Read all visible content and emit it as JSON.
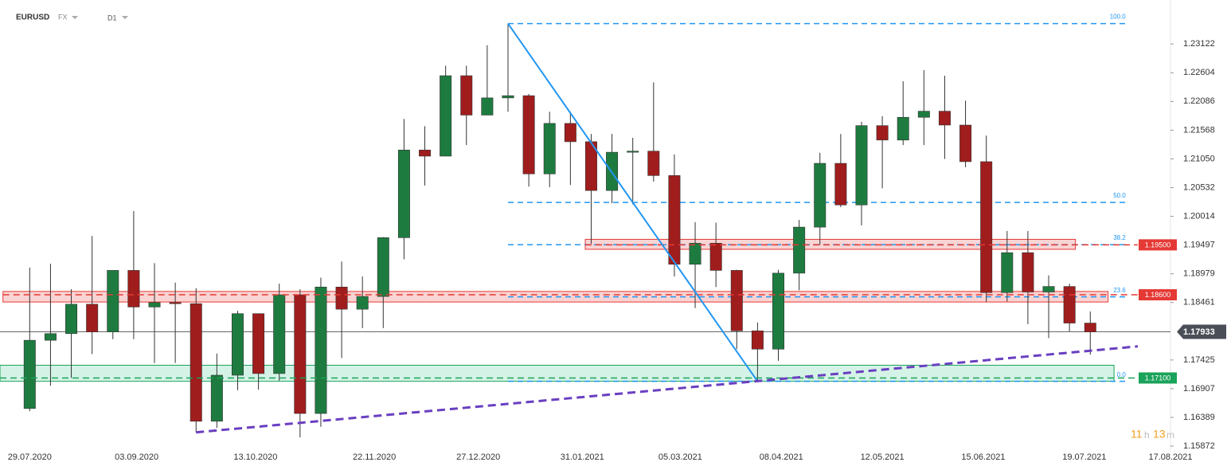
{
  "chart_data": {
    "type": "candlestick",
    "symbol": "EURUSD",
    "market": "FX",
    "timeframe": "D1",
    "countdown": [
      "11",
      "h",
      "13",
      "m"
    ],
    "up_color": "#1e7b40",
    "down_color": "#a01d1d",
    "x": [
      "27.07.2020",
      "03.08.2020",
      "10.08.2020",
      "17.08.2020",
      "24.08.2020",
      "31.08.2020",
      "07.09.2020",
      "14.09.2020",
      "21.09.2020",
      "28.09.2020",
      "05.10.2020",
      "12.10.2020",
      "19.10.2020",
      "26.10.2020",
      "02.11.2020",
      "09.11.2020",
      "16.11.2020",
      "23.11.2020",
      "30.11.2020",
      "07.12.2020",
      "14.12.2020",
      "21.12.2020",
      "28.12.2020",
      "04.01.2021",
      "11.01.2021",
      "18.01.2021",
      "25.01.2021",
      "01.02.2021",
      "08.02.2021",
      "15.02.2021",
      "22.02.2021",
      "01.03.2021",
      "08.03.2021",
      "15.03.2021",
      "22.03.2021",
      "29.03.2021",
      "05.04.2021",
      "12.04.2021",
      "19.04.2021",
      "26.04.2021",
      "03.05.2021",
      "10.05.2021",
      "17.05.2021",
      "24.05.2021",
      "31.05.2021",
      "07.06.2021",
      "14.06.2021",
      "21.06.2021",
      "28.06.2021",
      "05.07.2021",
      "12.07.2021",
      "19.07.2021"
    ],
    "open": [
      1.1655,
      1.1778,
      1.179,
      1.1843,
      1.1793,
      1.1904,
      1.1838,
      1.1846,
      1.1844,
      1.1632,
      1.1715,
      1.1826,
      1.1718,
      1.186,
      1.1646,
      1.1874,
      1.1834,
      1.1857,
      1.1963,
      1.2121,
      1.211,
      1.2255,
      1.2184,
      1.2215,
      1.2219,
      1.2078,
      1.2169,
      1.2136,
      1.2048,
      1.2117,
      1.2119,
      1.2075,
      1.1915,
      1.1953,
      1.1904,
      1.1795,
      1.1762,
      1.1899,
      1.1982,
      1.2097,
      1.2022,
      1.2165,
      1.2139,
      1.218,
      1.2191,
      1.2166,
      1.21,
      1.1864,
      1.1936,
      1.1865,
      1.1875,
      1.1809
    ],
    "high": [
      1.1909,
      1.1916,
      1.187,
      1.1966,
      1.1903,
      1.2011,
      1.1917,
      1.1882,
      1.1872,
      1.1754,
      1.1831,
      1.1826,
      1.188,
      1.187,
      1.1891,
      1.192,
      1.1893,
      1.1964,
      1.2177,
      1.2164,
      1.2273,
      1.2273,
      1.231,
      1.2349,
      1.2222,
      1.219,
      1.219,
      1.215,
      1.215,
      1.2143,
      1.2243,
      1.2113,
      1.1991,
      1.199,
      1.1905,
      1.181,
      1.1905,
      1.1995,
      1.2116,
      1.215,
      1.2172,
      1.2182,
      1.2245,
      1.2265,
      1.2255,
      1.221,
      1.2147,
      1.1975,
      1.1975,
      1.1895,
      1.188,
      1.183
    ],
    "low": [
      1.165,
      1.1696,
      1.171,
      1.1753,
      1.178,
      1.178,
      1.1737,
      1.1737,
      1.1612,
      1.162,
      1.1688,
      1.1689,
      1.1705,
      1.1603,
      1.1622,
      1.1746,
      1.18,
      1.18,
      1.1924,
      1.2057,
      1.211,
      1.213,
      1.2184,
      1.219,
      1.2055,
      1.2054,
      1.2058,
      1.1952,
      1.2025,
      1.2023,
      1.2064,
      1.1893,
      1.1836,
      1.1874,
      1.1762,
      1.1704,
      1.1741,
      1.1868,
      1.195,
      1.2018,
      1.1985,
      1.2052,
      1.213,
      1.213,
      1.2105,
      1.209,
      1.1847,
      1.1848,
      1.1807,
      1.1782,
      1.1794,
      1.1752
    ],
    "close": [
      1.1778,
      1.179,
      1.1843,
      1.1793,
      1.1904,
      1.1838,
      1.1846,
      1.1844,
      1.1632,
      1.1715,
      1.1826,
      1.1718,
      1.186,
      1.1646,
      1.1874,
      1.1834,
      1.1857,
      1.1963,
      1.2121,
      1.211,
      1.2255,
      1.2184,
      1.2215,
      1.2219,
      1.2078,
      1.2169,
      1.2136,
      1.2048,
      1.2117,
      1.2119,
      1.2075,
      1.1915,
      1.1953,
      1.1904,
      1.1795,
      1.1762,
      1.1899,
      1.1982,
      1.2097,
      1.2022,
      1.2165,
      1.2139,
      1.218,
      1.2191,
      1.2166,
      1.21,
      1.1864,
      1.1936,
      1.1865,
      1.1875,
      1.1809,
      1.1793
    ],
    "xlim": [
      "19.07.2020",
      "17.08.2021"
    ],
    "xticks": [
      "29.07.2020",
      "03.09.2020",
      "13.10.2020",
      "22.11.2020",
      "27.12.2020",
      "31.01.2021",
      "05.03.2021",
      "08.04.2021",
      "12.05.2021",
      "15.06.2021",
      "19.07.2021",
      "17.08.2021"
    ],
    "ylim": [
      1.158,
      1.238
    ],
    "yticks": [
      1.23122,
      1.22604,
      1.22086,
      1.21568,
      {
        "value": 1.2105,
        "label": "1.21050"
      },
      1.20532,
      1.20014,
      1.19497,
      1.18979,
      1.18461,
      1.17425,
      1.16907,
      1.16389,
      1.15872
    ],
    "current_price": 1.17933,
    "levels": [
      {
        "price": {
          "value": 1.195,
          "label": "1.19500"
        },
        "zone": [
          1.1942,
          1.196
        ],
        "from": "01.02.2021",
        "to": "16.07.2021",
        "line_to": "06.08.2021",
        "color": "#e53935",
        "fill": "rgba(229,57,53,0.22)"
      },
      {
        "price": {
          "value": 1.186,
          "label": "1.18600"
        },
        "zone": [
          1.1847,
          1.1866
        ],
        "from": "20.07.2020",
        "to": "27.07.2021",
        "line_to": "06.08.2021",
        "color": "#e53935",
        "fill": "rgba(229,57,53,0.22)"
      },
      {
        "price": {
          "value": 1.171,
          "label": "1.17100"
        },
        "zone": [
          1.1704,
          1.1733
        ],
        "from": "19.07.2020",
        "to": "29.07.2021",
        "line_to": "06.08.2021",
        "color": "#1aa35a",
        "fill": "rgba(60,200,140,0.22)"
      }
    ],
    "fib": {
      "high": 1.2349,
      "low": 1.1704,
      "from": "06.01.2021",
      "to": "03.08.2021",
      "color": "#2196f3",
      "levels": [
        {
          "value": 100,
          "label": "100.0"
        },
        {
          "value": 50,
          "label": "50.0"
        },
        {
          "value": 38.2,
          "label": "38.2"
        },
        {
          "value": 23.6,
          "label": "23.6"
        },
        {
          "value": 0,
          "label": "0.0"
        }
      ]
    },
    "trendlines": [
      {
        "color": "#2196f3",
        "dashed": false,
        "x": [
          "06.01.2021",
          "31.03.2021"
        ],
        "y": [
          1.2349,
          1.1704
        ]
      },
      {
        "color": "#6a3fc1",
        "dashed": true,
        "x": [
          "23.09.2020",
          "06.08.2021"
        ],
        "y": [
          1.1612,
          1.1767
        ]
      }
    ]
  }
}
